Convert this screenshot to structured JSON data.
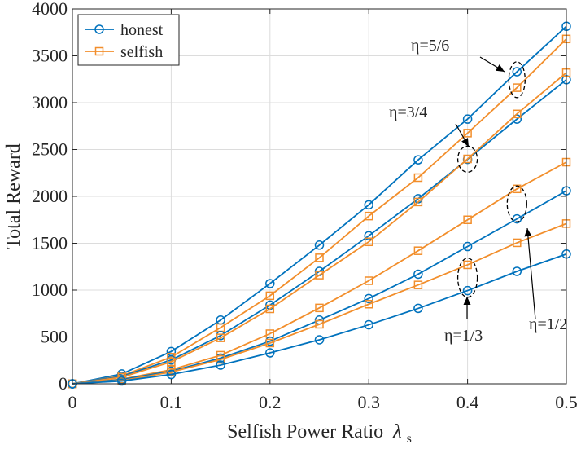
{
  "chart_data": {
    "type": "line",
    "title": "",
    "xlabel": "Selfish Power Ratio",
    "xlabel_symbol": "λ",
    "xlabel_subscript": "s",
    "ylabel": "Total Reward",
    "xlim": [
      0,
      0.5
    ],
    "ylim": [
      0,
      4000
    ],
    "x_ticks": [
      0,
      0.1,
      0.2,
      0.3,
      0.4,
      0.5
    ],
    "x_tick_labels": [
      "0",
      "0.1",
      "0.2",
      "0.3",
      "0.4",
      "0.5"
    ],
    "y_ticks": [
      0,
      500,
      1000,
      1500,
      2000,
      2500,
      3000,
      3500,
      4000
    ],
    "y_tick_labels": [
      "0",
      "500",
      "1000",
      "1500",
      "2000",
      "2500",
      "3000",
      "3500",
      "4000"
    ],
    "grid": true,
    "legend_position": "top-left",
    "legend": [
      {
        "label": "honest",
        "marker": "circle",
        "color": "#0072BD"
      },
      {
        "label": "selfish",
        "marker": "square",
        "color": "#F28E2B"
      }
    ],
    "x": [
      0,
      0.05,
      0.1,
      0.15,
      0.2,
      0.25,
      0.3,
      0.35,
      0.4,
      0.45,
      0.5
    ],
    "series": [
      {
        "name": "honest η=5/6",
        "group": "honest",
        "eta": "5/6",
        "values": [
          0,
          105,
          345,
          680,
          1070,
          1480,
          1910,
          2390,
          2825,
          3330,
          3815
        ]
      },
      {
        "name": "selfish η=5/6",
        "group": "selfish",
        "eta": "5/6",
        "values": [
          0,
          85,
          285,
          600,
          940,
          1345,
          1790,
          2200,
          2675,
          3160,
          3680
        ]
      },
      {
        "name": "honest η=3/4",
        "group": "honest",
        "eta": "3/4",
        "values": [
          0,
          80,
          255,
          515,
          840,
          1200,
          1580,
          1975,
          2395,
          2825,
          3245
        ]
      },
      {
        "name": "selfish η=3/4",
        "group": "selfish",
        "eta": "3/4",
        "values": [
          0,
          70,
          235,
          490,
          800,
          1160,
          1515,
          1940,
          2400,
          2880,
          3320
        ]
      },
      {
        "name": "selfish η=1/2",
        "group": "selfish",
        "eta": "1/2",
        "values": [
          0,
          50,
          150,
          305,
          535,
          810,
          1100,
          1420,
          1750,
          2080,
          2365
        ]
      },
      {
        "name": "honest η=1/2",
        "group": "honest",
        "eta": "1/2",
        "values": [
          0,
          45,
          135,
          275,
          455,
          680,
          910,
          1170,
          1465,
          1760,
          2060
        ]
      },
      {
        "name": "selfish η=1/3",
        "group": "selfish",
        "eta": "1/3",
        "values": [
          0,
          35,
          125,
          260,
          435,
          635,
          850,
          1055,
          1270,
          1505,
          1710
        ]
      },
      {
        "name": "honest η=1/3",
        "group": "honest",
        "eta": "1/3",
        "values": [
          0,
          30,
          100,
          200,
          330,
          470,
          630,
          805,
          995,
          1200,
          1385
        ]
      }
    ],
    "annotations": [
      {
        "label": "η=5/6",
        "eta": "5/6",
        "x": 0.45
      },
      {
        "label": "η=3/4",
        "eta": "3/4",
        "x": 0.4
      },
      {
        "label": "η=1/2",
        "eta": "1/2",
        "x": 0.45
      },
      {
        "label": "η=1/3",
        "eta": "1/3",
        "x": 0.4
      }
    ]
  }
}
